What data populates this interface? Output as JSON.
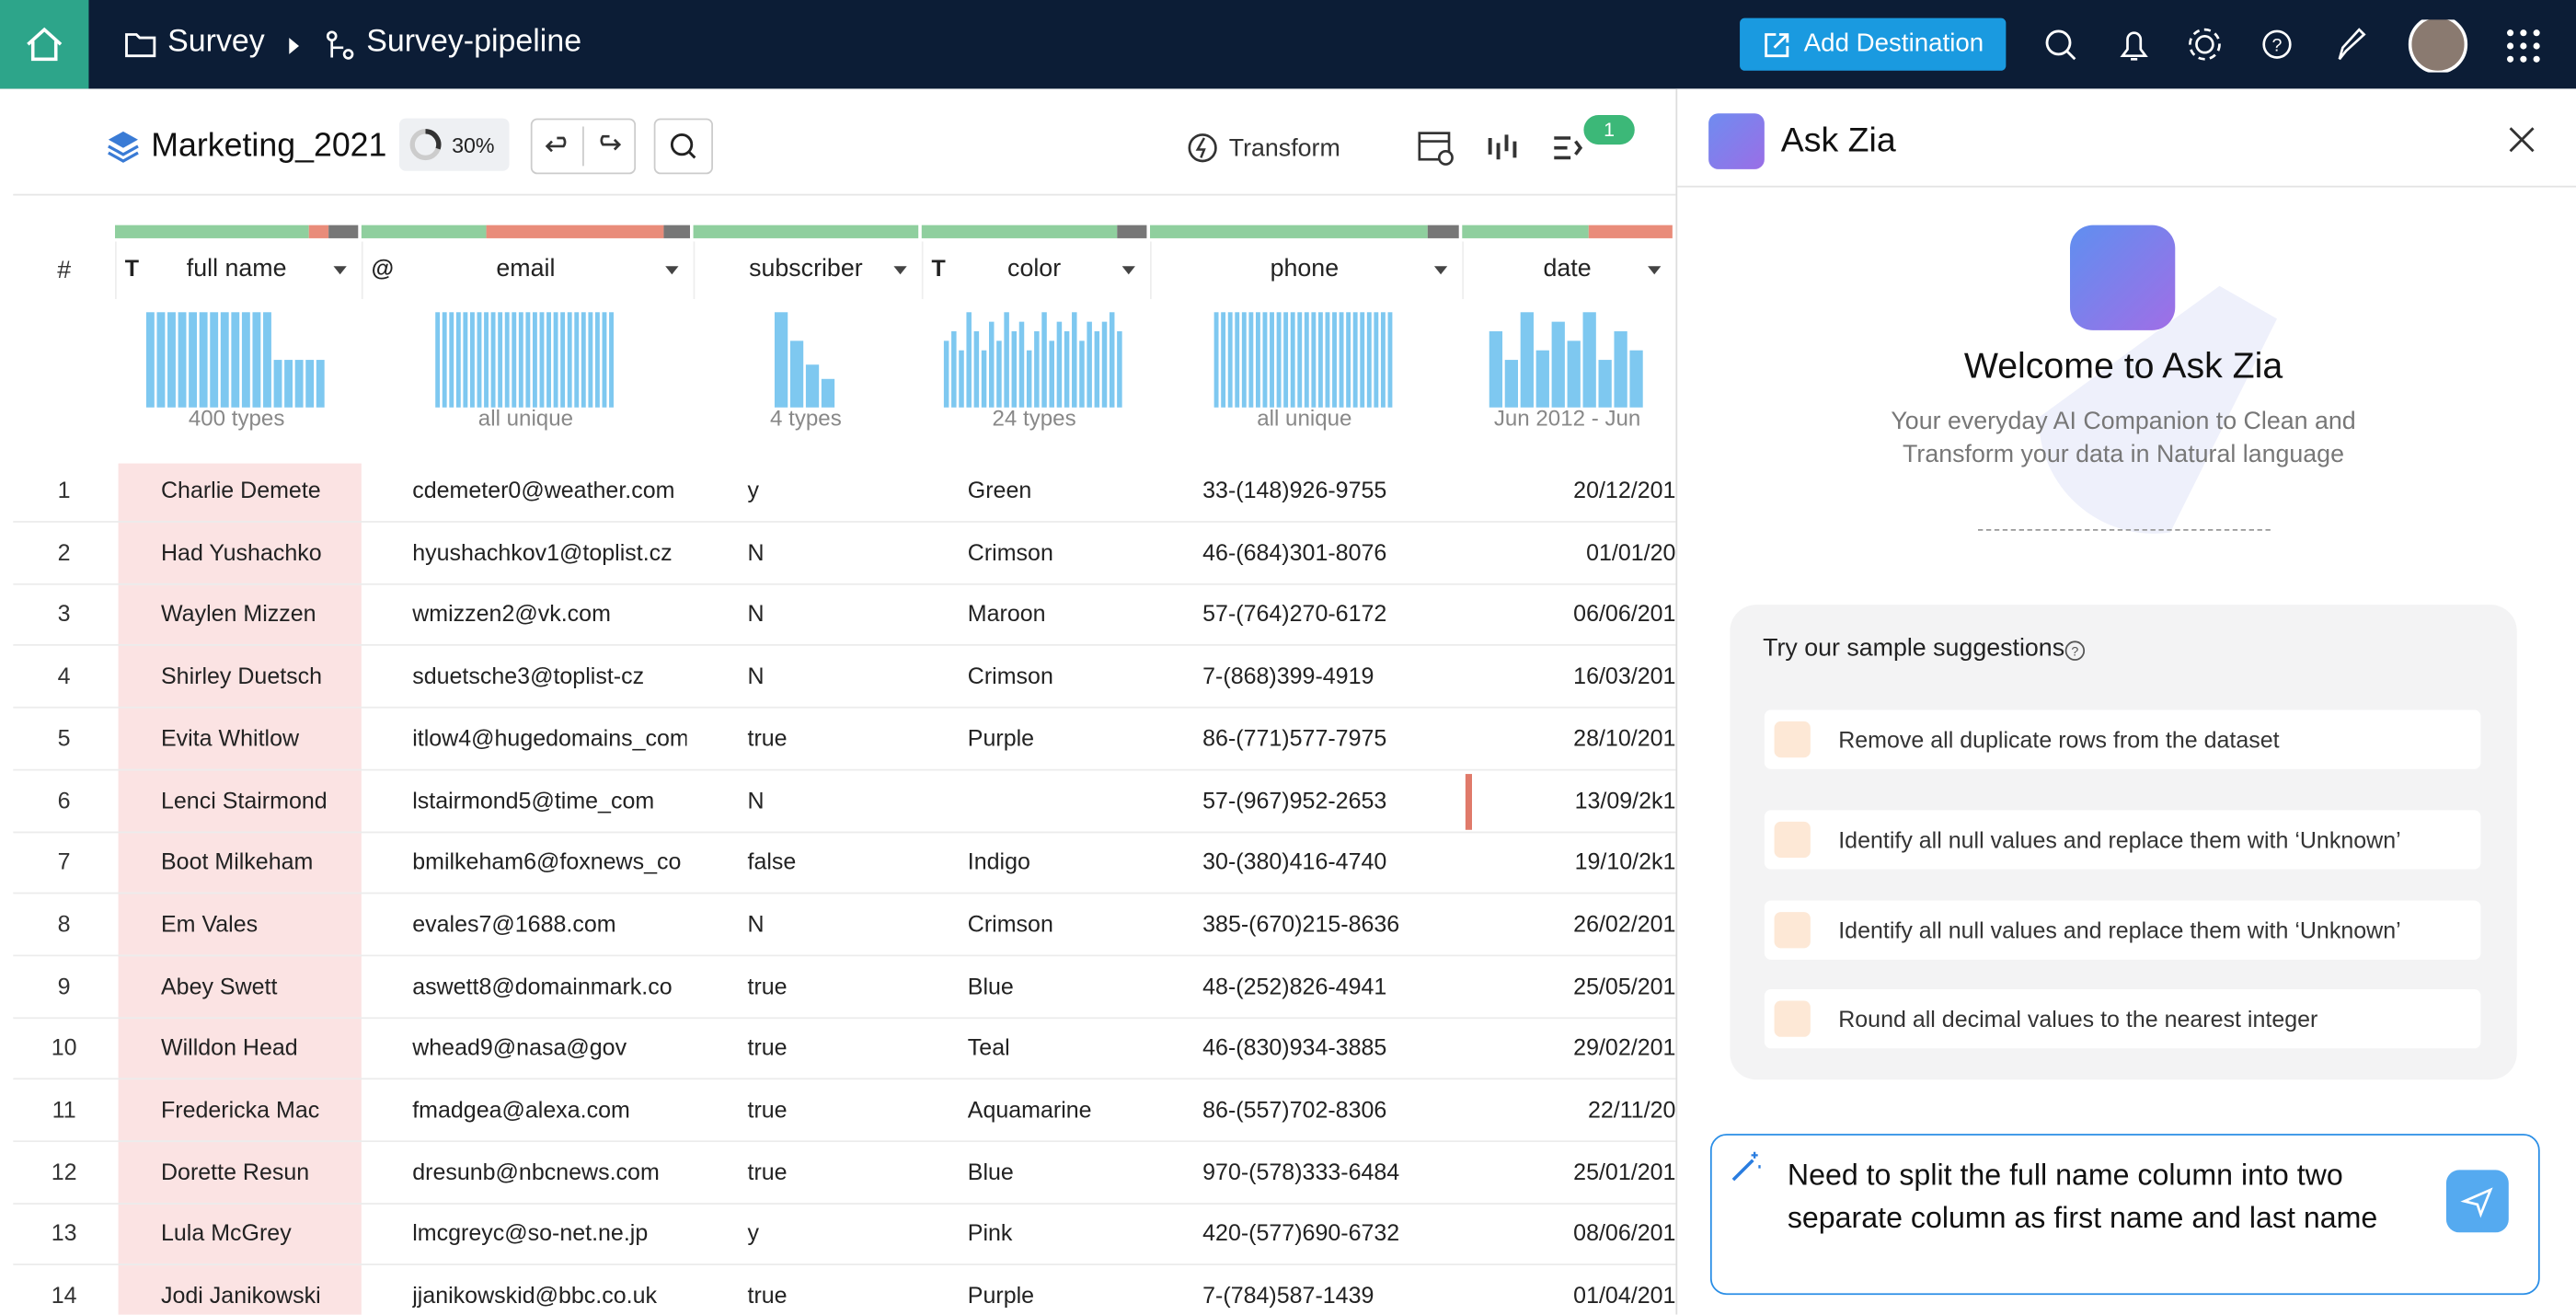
{
  "header": {
    "project": "Survey",
    "pipeline": "Survey-pipeline",
    "action": "Add Destination"
  },
  "toolbar": {
    "dataset": "Marketing_2021",
    "quality": "30%",
    "transform": "Transform",
    "badge": "1"
  },
  "table": {
    "row_header": "#",
    "columns": [
      {
        "icon": "T",
        "name": "full name",
        "summary": "400 types"
      },
      {
        "icon": "@",
        "name": "email",
        "summary": "all unique"
      },
      {
        "name": "subscriber",
        "summary": "4 types"
      },
      {
        "icon": "T",
        "name": "color",
        "summary": "24 types"
      },
      {
        "name": "phone",
        "summary": "all unique"
      },
      {
        "name": "date",
        "summary": "Jun 2012 - Jun"
      }
    ],
    "rows": [
      [
        1,
        "Charlie Demete",
        "cdemeter0@weather.com",
        "y",
        "Green",
        "33-(148)926-9755",
        "20/12/201"
      ],
      [
        2,
        "Had Yushachko",
        "hyushachkov1@toplist.cz",
        "N",
        "Crimson",
        "46-(684)301-8076",
        "01/01/20"
      ],
      [
        3,
        "Waylen Mizzen",
        "wmizzen2@vk.com",
        "N",
        "Maroon",
        "57-(764)270-6172",
        "06/06/201"
      ],
      [
        4,
        "Shirley Duetsch",
        "sduetsche3@toplist-cz",
        "N",
        "Crimson",
        "7-(868)399-4919",
        "16/03/201"
      ],
      [
        5,
        "Evita Whitlow",
        "itlow4@hugedomains_com",
        "true",
        "Purple",
        "86-(771)577-7975",
        "28/10/201"
      ],
      [
        6,
        "Lenci Stairmond",
        "lstairmond5@time_com",
        "N",
        null,
        "57-(967)952-2653",
        "13/09/2k1"
      ],
      [
        7,
        "Boot Milkeham",
        "bmilkeham6@foxnews_co",
        "false",
        "Indigo",
        "30-(380)416-4740",
        "19/10/2k1"
      ],
      [
        8,
        "Em Vales",
        "evales7@1688.com",
        "N",
        "Crimson",
        "385-(670)215-8636",
        "26/02/201"
      ],
      [
        9,
        "Abey Swett",
        "aswett8@domainmark.co",
        "true",
        "Blue",
        "48-(252)826-4941",
        "25/05/201"
      ],
      [
        10,
        "Willdon Head",
        "whead9@nasa@gov",
        "true",
        "Teal",
        "46-(830)934-3885",
        "29/02/201"
      ],
      [
        11,
        "Fredericka Mac",
        "fmadgea@alexa.com",
        "true",
        "Aquamarine",
        "86-(557)702-8306",
        "22/11/20"
      ],
      [
        12,
        "Dorette Resun",
        "dresunb@nbcnews.com",
        "true",
        "Blue",
        "970-(578)333-6484",
        "25/01/201"
      ],
      [
        13,
        "Lula McGrey",
        "lmcgreyc@so-net.ne.jp",
        "y",
        "Pink",
        "420-(577)690-6732",
        "08/06/201"
      ],
      [
        14,
        "Jodi Janikowski",
        "jjanikowskid@bbc.co.uk",
        "true",
        "Purple",
        "7-(784)587-1439",
        "01/04/201"
      ]
    ]
  },
  "zia": {
    "title": "Ask Zia",
    "welcome": "Welcome to Ask Zia",
    "subtitle": "Your everyday AI Companion to Clean and Transform your data in Natural language",
    "suggestions_title": "Try our sample suggestions",
    "suggestions": [
      "Remove all duplicate rows from the dataset",
      "Identify all null values and replace them with ‘Unknown’",
      "Identify all null values and replace them with ‘Unknown’",
      "Round all decimal values to the nearest integer"
    ],
    "input": "Need to split the full name column into two separate column as first name and last name"
  }
}
